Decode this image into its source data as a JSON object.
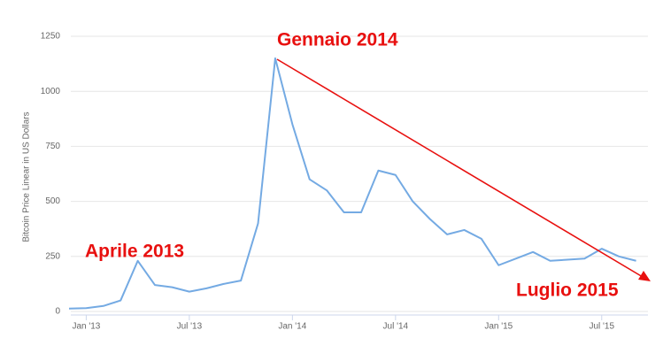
{
  "chart_data": {
    "type": "line",
    "y_label": "Bitcoin Price Linear in US Dollars",
    "annotations": [
      "Aprile 2013",
      "Gennaio 2014",
      "Luglio 2015"
    ],
    "x": [
      "2012-12",
      "2013-01",
      "2013-02",
      "2013-03",
      "2013-04",
      "2013-05",
      "2013-06",
      "2013-07",
      "2013-08",
      "2013-09",
      "2013-10",
      "2013-11",
      "2013-12",
      "2014-01",
      "2014-02",
      "2014-03",
      "2014-04",
      "2014-05",
      "2014-06",
      "2014-07",
      "2014-08",
      "2014-09",
      "2014-10",
      "2014-11",
      "2014-12",
      "2015-01",
      "2015-02",
      "2015-03",
      "2015-04",
      "2015-05",
      "2015-06",
      "2015-07",
      "2015-08",
      "2015-09"
    ],
    "series": [
      {
        "name": "Bitcoin",
        "color": "#74aae3",
        "values": [
          13,
          15,
          25,
          50,
          230,
          120,
          110,
          90,
          105,
          125,
          140,
          400,
          1150,
          850,
          600,
          550,
          450,
          450,
          640,
          620,
          500,
          420,
          350,
          370,
          330,
          210,
          240,
          270,
          230,
          235,
          240,
          285,
          250,
          230
        ]
      }
    ],
    "xlim": [
      "2012-12",
      "2015-10"
    ],
    "xticks": [
      {
        "value": "2013-01",
        "label": "Jan '13"
      },
      {
        "value": "2013-07",
        "label": "Jul '13"
      },
      {
        "value": "2014-01",
        "label": "Jan '14"
      },
      {
        "value": "2014-07",
        "label": "Jul '14"
      },
      {
        "value": "2015-01",
        "label": "Jan '15"
      },
      {
        "value": "2015-07",
        "label": "Jul '15"
      }
    ],
    "ylim": [
      0,
      1250
    ],
    "yticks": [
      0,
      250,
      500,
      750,
      1000,
      1250
    ],
    "grid": true
  }
}
